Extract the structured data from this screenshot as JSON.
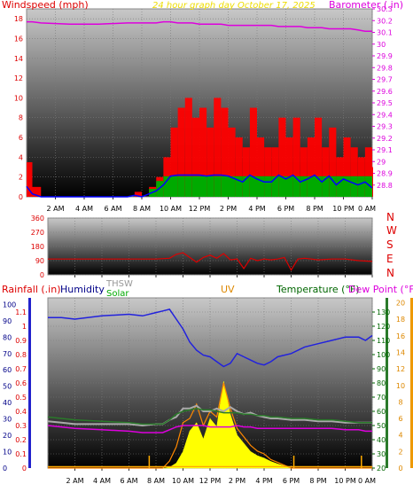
{
  "header": {
    "title": "24 hour graph day   October 17, 2025",
    "title_color": "#ffee00",
    "left_label": "Windspeed (mph)",
    "left_color": "#dd0000",
    "right_label": "Barometer (.in)",
    "right_color": "#dd00dd"
  },
  "time_ticks": [
    "2 AM",
    "4 AM",
    "6 AM",
    "8 AM",
    "10 AM",
    "12 PM",
    "2 PM",
    "4 PM",
    "6 PM",
    "8 PM",
    "10 PM",
    "0 AM"
  ],
  "panel3_legend": {
    "rain": "Rainfall (.in)",
    "humidity": "Humidity",
    "thsw": "THSW",
    "solar": "Solar",
    "uv": "UV",
    "temperature": "Temperature (°F)",
    "dewpoint": "Dew Point (°F)"
  },
  "directions": [
    "N",
    "W",
    "S",
    "E",
    "N"
  ],
  "colors": {
    "wind": "#ff0000",
    "gust_dir": "#dd0000",
    "barometer": "#dd00dd",
    "solar_fill": "#00aa00",
    "wind_avg": "#0000ff",
    "humidity": "#2222dd",
    "thsw": "#aaaaaa",
    "temperature": "#2a7a2a",
    "dewpoint": "#dd00dd",
    "uv": "#ffff00",
    "solar_line": "#ff8800",
    "rain": "#ffaa00"
  },
  "chart_data": [
    {
      "type": "line",
      "title": "24 hour graph day   October 17, 2025",
      "xlabel": "",
      "ylabel": "Windspeed (mph)",
      "y2label": "Barometer (.in)",
      "ylim": [
        0,
        19
      ],
      "y2lim": [
        28.7,
        30.3
      ],
      "yticks": [
        0,
        2,
        4,
        6,
        8,
        10,
        12,
        14,
        16,
        18
      ],
      "y2ticks": [
        "28.8",
        "28.9",
        "29",
        "29.1",
        "29.2",
        "29.3",
        "29.4",
        "29.5",
        "29.6",
        "29.7",
        "29.8",
        "29.9",
        "30",
        "30.1",
        "30.2",
        "30.3"
      ],
      "x_hours": [
        0,
        0.4,
        1,
        3,
        5,
        7,
        7.5,
        8,
        8.5,
        9,
        9.5,
        10,
        10.5,
        11,
        11.5,
        12,
        12.5,
        13,
        13.5,
        14,
        14.5,
        15,
        15.5,
        16,
        16.5,
        17,
        17.5,
        18,
        18.5,
        19,
        19.5,
        20,
        20.5,
        21,
        21.5,
        22,
        22.5,
        23,
        23.5,
        24
      ],
      "series": [
        {
          "name": "Windspeed (mph)",
          "values": [
            3.5,
            1,
            0,
            0,
            0,
            0,
            0.5,
            0,
            1,
            2,
            4,
            7,
            9,
            10,
            8,
            9,
            7,
            10,
            9,
            7,
            6,
            5,
            9,
            6,
            5,
            5,
            8,
            6,
            8,
            5,
            6,
            8,
            5,
            7,
            4,
            6,
            5,
            4,
            5,
            3
          ]
        },
        {
          "name": "Barometer (.in)",
          "values": [
            30.19,
            30.19,
            30.18,
            30.17,
            30.17,
            30.18,
            30.18,
            30.18,
            30.18,
            30.18,
            30.19,
            30.19,
            30.18,
            30.18,
            30.18,
            30.17,
            30.17,
            30.17,
            30.17,
            30.16,
            30.16,
            30.16,
            30.16,
            30.16,
            30.16,
            30.16,
            30.15,
            30.15,
            30.15,
            30.15,
            30.14,
            30.14,
            30.14,
            30.13,
            30.13,
            30.13,
            30.13,
            30.12,
            30.11,
            30.11
          ]
        }
      ]
    },
    {
      "type": "line",
      "xlabel": "",
      "ylabel": "",
      "ylim": [
        0,
        360
      ],
      "yticks": [
        0,
        90,
        180,
        270,
        360
      ],
      "x_hours": [
        0,
        1,
        3,
        5,
        7,
        8,
        9,
        9.5,
        10,
        10.5,
        11,
        11.5,
        12,
        12.5,
        13,
        13.5,
        14,
        14.5,
        15,
        15.5,
        16,
        16.5,
        17,
        17.5,
        18,
        18.5,
        19,
        20,
        21,
        22,
        23,
        24
      ],
      "series": [
        {
          "values": [
            100,
            100,
            100,
            100,
            100,
            100,
            105,
            130,
            140,
            110,
            80,
            110,
            125,
            105,
            135,
            95,
            100,
            40,
            105,
            90,
            100,
            95,
            100,
            110,
            30,
            100,
            105,
            95,
            100,
            100,
            90,
            85
          ]
        }
      ]
    },
    {
      "type": "line",
      "xlabel": "",
      "ylabel": "Rainfall (.in)",
      "y2label": "Temperature (°F) / Dew Point (°F)",
      "ylim": [
        0,
        1.2
      ],
      "y1ticks_humidity": [
        0,
        10,
        20,
        30,
        40,
        50,
        60,
        70,
        80,
        90,
        100
      ],
      "yticks": [
        0,
        0.1,
        0.2,
        0.3,
        0.4,
        0.5,
        0.6,
        0.7,
        0.8,
        0.9,
        1,
        1.1
      ],
      "y2ticks_temperature": [
        20,
        30,
        40,
        50,
        60,
        70,
        80,
        90,
        100,
        110,
        120,
        130
      ],
      "y2ticks_uv": [
        0,
        2,
        4,
        6,
        8,
        10,
        12,
        14,
        16,
        18,
        20
      ],
      "x_hours": [
        0,
        1,
        2,
        4,
        6,
        7,
        8,
        8.5,
        9,
        9.5,
        10,
        10.5,
        11,
        11.5,
        12,
        12.5,
        13,
        13.5,
        14,
        14.5,
        15,
        15.5,
        16,
        16.5,
        17,
        18,
        19,
        20,
        21,
        22,
        23,
        23.5,
        24
      ],
      "series": [
        {
          "name": "Humidity",
          "values": [
            92,
            92,
            91,
            93,
            94,
            93,
            95,
            96,
            97,
            91,
            85,
            77,
            72,
            69,
            68,
            65,
            62,
            64,
            70,
            68,
            66,
            64,
            63,
            65,
            68,
            70,
            74,
            76,
            78,
            80,
            80,
            78,
            81
          ]
        },
        {
          "name": "THSW",
          "values": [
            53,
            52,
            51,
            51,
            51,
            50,
            51,
            51,
            54,
            56,
            62,
            62,
            64,
            60,
            60,
            62,
            60,
            63,
            60,
            58,
            59,
            57,
            56,
            55,
            55,
            54,
            54,
            53,
            53,
            52,
            52,
            52,
            52
          ]
        },
        {
          "name": "Temperature (°F)",
          "values": [
            56,
            55,
            54,
            53,
            52,
            51,
            51,
            51,
            54,
            58,
            60,
            61,
            62,
            61,
            61,
            60,
            59,
            59,
            59,
            58,
            58,
            57,
            57,
            56,
            56,
            55,
            55,
            54,
            54,
            53,
            52,
            52,
            52
          ]
        },
        {
          "name": "Dew Point (°F)",
          "values": [
            50,
            49,
            48,
            47,
            46,
            45,
            45,
            45,
            47,
            49,
            50,
            50,
            50,
            50,
            49,
            49,
            49,
            49,
            50,
            49,
            49,
            48,
            48,
            48,
            48,
            48,
            48,
            48,
            48,
            47,
            47,
            46,
            46
          ]
        },
        {
          "name": "UV",
          "values": [
            0,
            0,
            0,
            0,
            0,
            0,
            0,
            0,
            0.1,
            0.6,
            2.0,
            4.5,
            5.5,
            3.5,
            6.0,
            5.0,
            10.5,
            6.5,
            4.0,
            3.0,
            2.0,
            1.5,
            1.2,
            0.8,
            0.5,
            0,
            0,
            0,
            0,
            0,
            0,
            0,
            0
          ]
        },
        {
          "name": "Solar",
          "values": [
            0,
            0,
            0,
            0,
            0,
            0,
            0,
            0,
            0.05,
            0.15,
            0.32,
            0.35,
            0.45,
            0.3,
            0.4,
            0.36,
            0.6,
            0.42,
            0.28,
            0.22,
            0.16,
            0.12,
            0.1,
            0.06,
            0.04,
            0,
            0,
            0,
            0,
            0,
            0,
            0,
            0
          ]
        },
        {
          "name": "Rainfall (.in)",
          "values": [
            0.01,
            0.01,
            0.01,
            0.01,
            0.01,
            0.01,
            0.01,
            0.01,
            0.01,
            0.01,
            0.01,
            0.01,
            0.01,
            0.01,
            0.01,
            0.01,
            0.01,
            0.01,
            0.01,
            0.01,
            0.01,
            0.01,
            0.01,
            0.01,
            0.01,
            0.01,
            0.01,
            0.01,
            0.01,
            0.01,
            0.01,
            0.01,
            0.01
          ]
        }
      ]
    }
  ]
}
